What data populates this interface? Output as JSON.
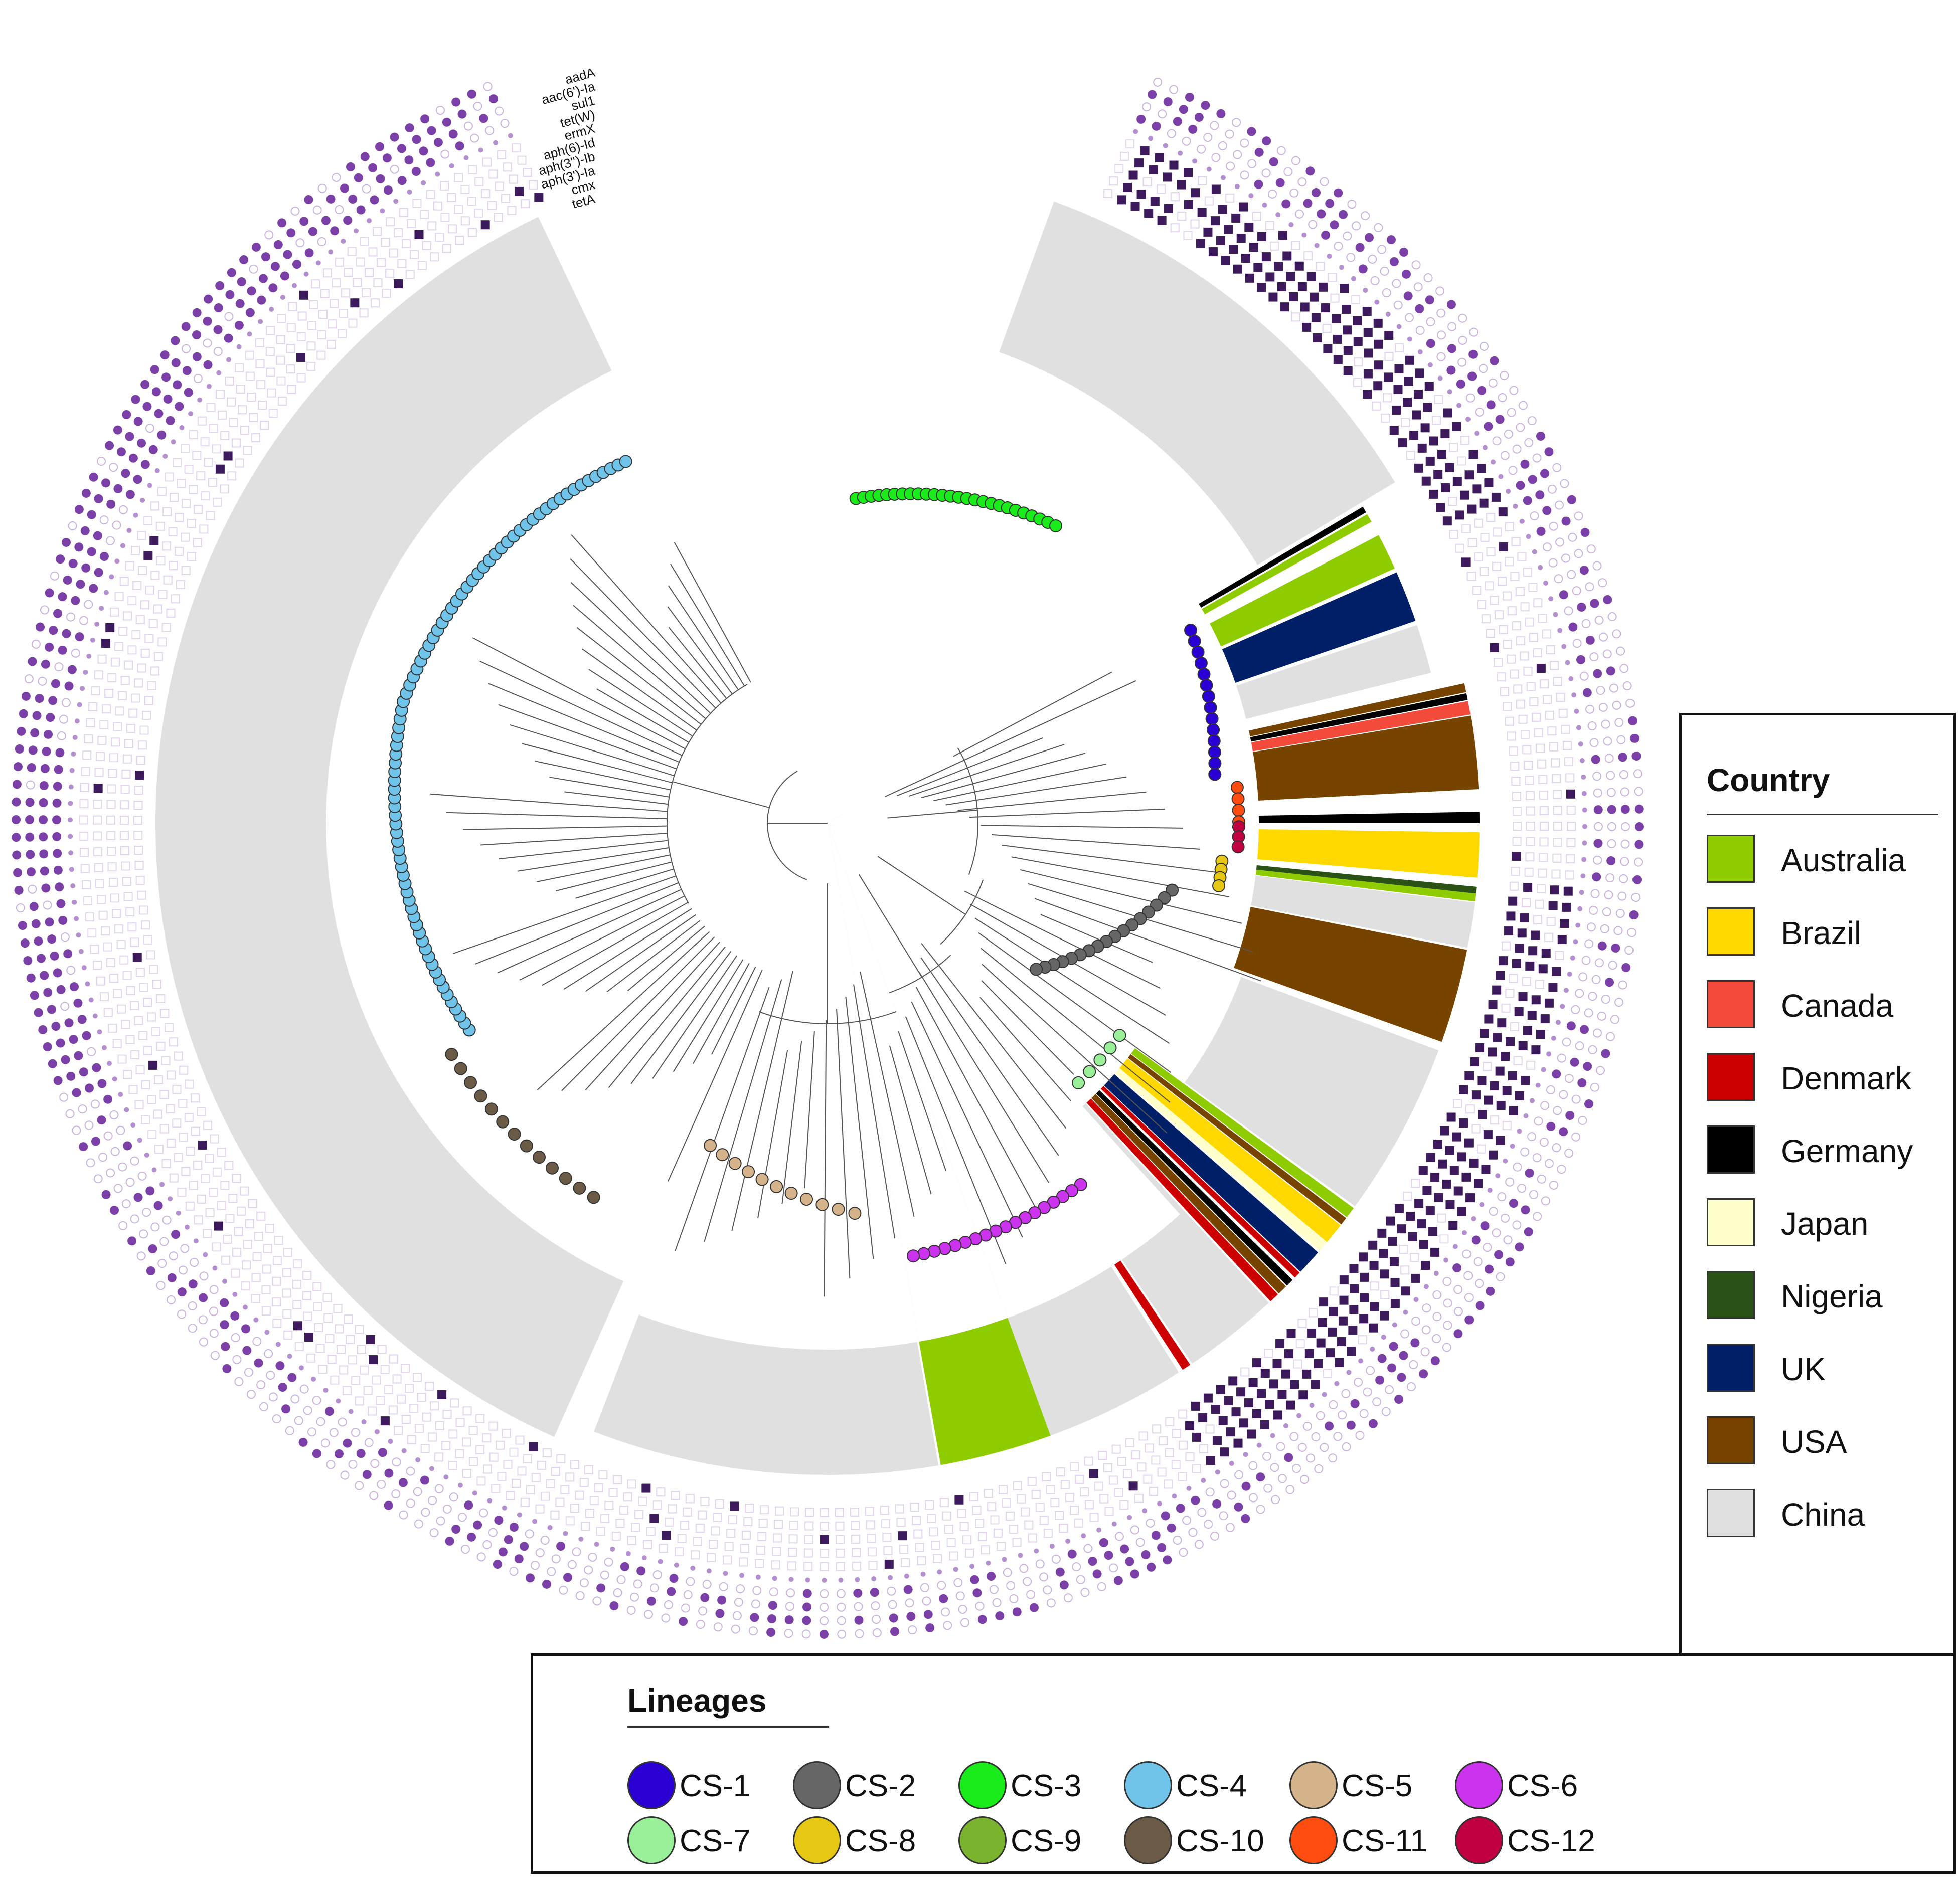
{
  "genes": [
    "aadA",
    "aac(6')-Ia",
    "sul1",
    "tet(W)",
    "ermX",
    "aph(6)-Id",
    "aph(3'')-Ib",
    "aph(3')-Ia",
    "cmx",
    "tetA"
  ],
  "gene_marker_color": "#7b3fa8",
  "gene_square_color": "#3d1a5c",
  "country_legend": {
    "title": "Country",
    "items": [
      {
        "label": "Australia",
        "color": "#8ecc00"
      },
      {
        "label": "Brazil",
        "color": "#ffd800"
      },
      {
        "label": "Canada",
        "color": "#f24a3b"
      },
      {
        "label": "Denmark",
        "color": "#cc0000"
      },
      {
        "label": "Germany",
        "color": "#000000"
      },
      {
        "label": "Japan",
        "color": "#ffffcc"
      },
      {
        "label": "Nigeria",
        "color": "#2b5216"
      },
      {
        "label": "UK",
        "color": "#001f66"
      },
      {
        "label": "USA",
        "color": "#774400"
      },
      {
        "label": "China",
        "color": "#e0e0e0"
      }
    ]
  },
  "lineage_legend": {
    "title": "Lineages",
    "items": [
      {
        "label": "CS-1",
        "color": "#2a00d4"
      },
      {
        "label": "CS-2",
        "color": "#666666"
      },
      {
        "label": "CS-3",
        "color": "#1aeb1a"
      },
      {
        "label": "CS-4",
        "color": "#70c4ea"
      },
      {
        "label": "CS-5",
        "color": "#d5b48c"
      },
      {
        "label": "CS-6",
        "color": "#cc33ee"
      },
      {
        "label": "CS-7",
        "color": "#99f099"
      },
      {
        "label": "CS-8",
        "color": "#e6c814"
      },
      {
        "label": "CS-9",
        "color": "#7ab32e"
      },
      {
        "label": "CS-10",
        "color": "#6b5a45"
      },
      {
        "label": "CS-11",
        "color": "#ff4d11"
      },
      {
        "label": "CS-12",
        "color": "#c00040"
      }
    ]
  }
}
